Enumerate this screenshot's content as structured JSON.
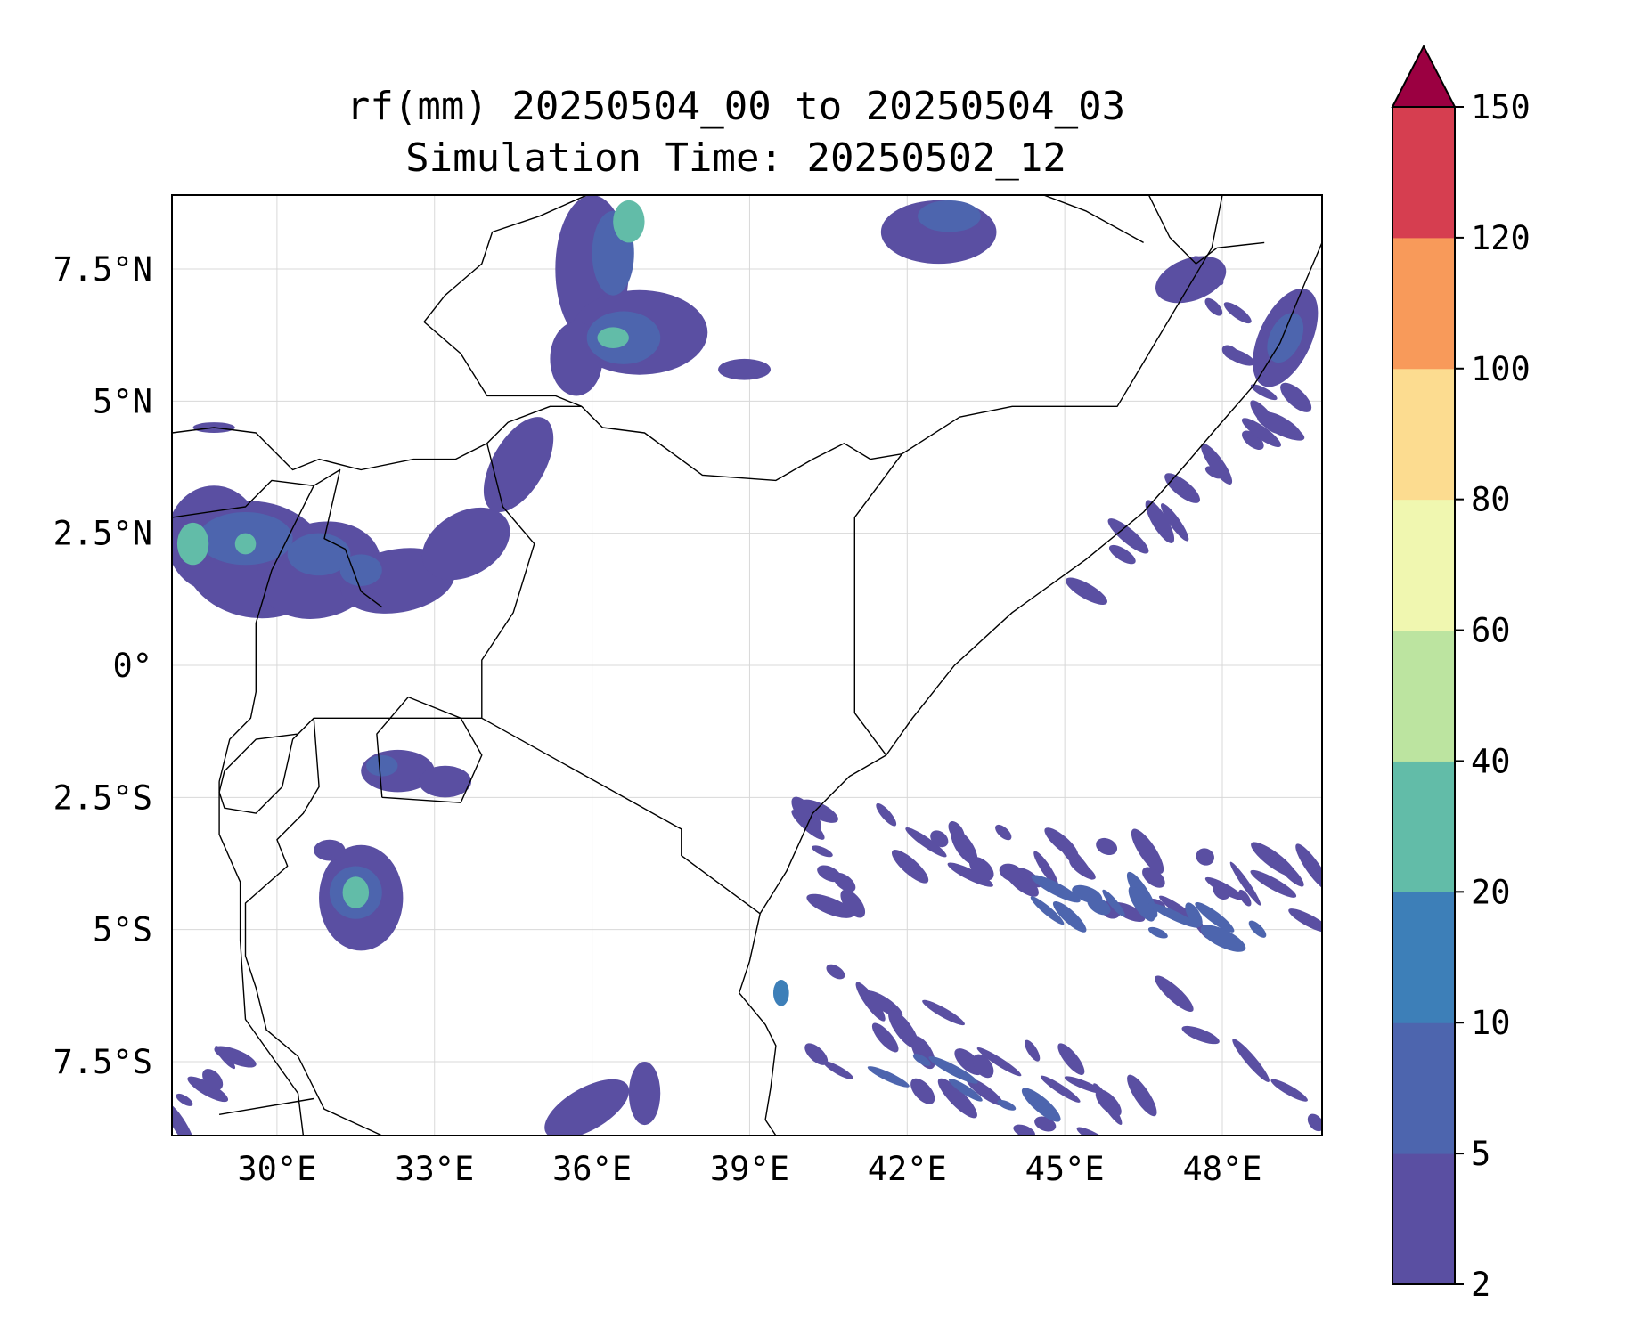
{
  "title": {
    "line1": "rf(mm) 20250504_00 to 20250504_03",
    "line2": "Simulation Time: 20250502_12"
  },
  "map": {
    "extent": {
      "lon_min": 28.0,
      "lon_max": 49.9,
      "lat_min": -8.9,
      "lat_max": 8.9
    },
    "lon_ticks": [
      {
        "value": 30,
        "label": "30°E"
      },
      {
        "value": 33,
        "label": "33°E"
      },
      {
        "value": 36,
        "label": "36°E"
      },
      {
        "value": 39,
        "label": "39°E"
      },
      {
        "value": 42,
        "label": "42°E"
      },
      {
        "value": 45,
        "label": "45°E"
      },
      {
        "value": 48,
        "label": "48°E"
      }
    ],
    "lat_ticks": [
      {
        "value": 7.5,
        "label": "7.5°N"
      },
      {
        "value": 5,
        "label": "5°N"
      },
      {
        "value": 2.5,
        "label": "2.5°N"
      },
      {
        "value": 0,
        "label": "0°"
      },
      {
        "value": -2.5,
        "label": "2.5°S"
      },
      {
        "value": -5,
        "label": "5°S"
      },
      {
        "value": -7.5,
        "label": "7.5°S"
      }
    ],
    "gridlines": true
  },
  "colorbar": {
    "levels": [
      {
        "value": 2,
        "label": "2",
        "color": "#5a4fa2"
      },
      {
        "value": 5,
        "label": "5",
        "color": "#4d65ae"
      },
      {
        "value": 10,
        "label": "10",
        "color": "#3d7fb8"
      },
      {
        "value": 20,
        "label": "20",
        "color": "#62bca8"
      },
      {
        "value": 40,
        "label": "40",
        "color": "#bce4a0"
      },
      {
        "value": 60,
        "label": "60",
        "color": "#f0f7b0"
      },
      {
        "value": 80,
        "label": "80",
        "color": "#fcdc90"
      },
      {
        "value": 100,
        "label": "100",
        "color": "#f89a5a"
      },
      {
        "value": 120,
        "label": "120",
        "color": "#d63e50"
      },
      {
        "value": 150,
        "label": "150",
        "color": "#9b0041"
      }
    ],
    "extend": "max"
  },
  "rain_cells": [
    {
      "lon": 28.8,
      "lat": 2.4,
      "rx": 0.9,
      "ry": 1.0,
      "rot": 0,
      "level": 0
    },
    {
      "lon": 29.6,
      "lat": 2.0,
      "rx": 1.4,
      "ry": 1.1,
      "rot": 10,
      "level": 0
    },
    {
      "lon": 30.8,
      "lat": 1.8,
      "rx": 1.2,
      "ry": 0.9,
      "rot": -15,
      "level": 0
    },
    {
      "lon": 32.3,
      "lat": 1.6,
      "rx": 1.1,
      "ry": 0.6,
      "rot": -10,
      "level": 0
    },
    {
      "lon": 33.6,
      "lat": 2.3,
      "rx": 0.9,
      "ry": 0.6,
      "rot": -30,
      "level": 0
    },
    {
      "lon": 34.6,
      "lat": 3.8,
      "rx": 0.5,
      "ry": 1.0,
      "rot": 30,
      "level": 0
    },
    {
      "lon": 29.4,
      "lat": 2.4,
      "rx": 0.9,
      "ry": 0.5,
      "rot": 0,
      "level": 1
    },
    {
      "lon": 30.8,
      "lat": 2.1,
      "rx": 0.6,
      "ry": 0.4,
      "rot": 0,
      "level": 1
    },
    {
      "lon": 31.6,
      "lat": 1.8,
      "rx": 0.4,
      "ry": 0.3,
      "rot": 0,
      "level": 1
    },
    {
      "lon": 28.4,
      "lat": 2.3,
      "rx": 0.3,
      "ry": 0.4,
      "rot": 0,
      "level": 3
    },
    {
      "lon": 29.4,
      "lat": 2.3,
      "rx": 0.2,
      "ry": 0.2,
      "rot": 0,
      "level": 3
    },
    {
      "lon": 36.0,
      "lat": 7.5,
      "rx": 0.7,
      "ry": 1.4,
      "rot": 0,
      "level": 0
    },
    {
      "lon": 36.9,
      "lat": 6.3,
      "rx": 1.3,
      "ry": 0.8,
      "rot": 0,
      "level": 0
    },
    {
      "lon": 35.7,
      "lat": 5.8,
      "rx": 0.5,
      "ry": 0.7,
      "rot": 0,
      "level": 0
    },
    {
      "lon": 36.6,
      "lat": 6.2,
      "rx": 0.7,
      "ry": 0.5,
      "rot": 0,
      "level": 1
    },
    {
      "lon": 36.4,
      "lat": 7.8,
      "rx": 0.4,
      "ry": 0.8,
      "rot": 0,
      "level": 1
    },
    {
      "lon": 36.4,
      "lat": 6.2,
      "rx": 0.3,
      "ry": 0.2,
      "rot": 0,
      "level": 3
    },
    {
      "lon": 36.7,
      "lat": 8.4,
      "rx": 0.3,
      "ry": 0.4,
      "rot": 0,
      "level": 3
    },
    {
      "lon": 38.9,
      "lat": 5.6,
      "rx": 0.5,
      "ry": 0.2,
      "rot": 0,
      "level": 0
    },
    {
      "lon": 42.6,
      "lat": 8.2,
      "rx": 1.1,
      "ry": 0.6,
      "rot": 0,
      "level": 0
    },
    {
      "lon": 42.8,
      "lat": 8.5,
      "rx": 0.6,
      "ry": 0.3,
      "rot": 0,
      "level": 1
    },
    {
      "lon": 47.4,
      "lat": 7.3,
      "rx": 0.7,
      "ry": 0.4,
      "rot": -20,
      "level": 0
    },
    {
      "lon": 49.2,
      "lat": 6.2,
      "rx": 0.5,
      "ry": 1.0,
      "rot": 25,
      "level": 0
    },
    {
      "lon": 49.2,
      "lat": 6.2,
      "rx": 0.3,
      "ry": 0.5,
      "rot": 25,
      "level": 1
    },
    {
      "lon": 32.3,
      "lat": -2.0,
      "rx": 0.7,
      "ry": 0.4,
      "rot": 0,
      "level": 0
    },
    {
      "lon": 33.2,
      "lat": -2.2,
      "rx": 0.5,
      "ry": 0.3,
      "rot": 0,
      "level": 0
    },
    {
      "lon": 32.0,
      "lat": -1.9,
      "rx": 0.3,
      "ry": 0.2,
      "rot": 0,
      "level": 1
    },
    {
      "lon": 31.6,
      "lat": -4.4,
      "rx": 0.8,
      "ry": 1.0,
      "rot": 0,
      "level": 0
    },
    {
      "lon": 31.5,
      "lat": -4.3,
      "rx": 0.5,
      "ry": 0.5,
      "rot": 0,
      "level": 1
    },
    {
      "lon": 31.5,
      "lat": -4.3,
      "rx": 0.25,
      "ry": 0.3,
      "rot": 0,
      "level": 3
    },
    {
      "lon": 31.0,
      "lat": -3.5,
      "rx": 0.3,
      "ry": 0.2,
      "rot": 0,
      "level": 0
    },
    {
      "lon": 35.9,
      "lat": -8.4,
      "rx": 0.9,
      "ry": 0.4,
      "rot": -30,
      "level": 0
    },
    {
      "lon": 37.0,
      "lat": -8.1,
      "rx": 0.3,
      "ry": 0.6,
      "rot": 0,
      "level": 0
    },
    {
      "lon": 39.6,
      "lat": -6.2,
      "rx": 0.15,
      "ry": 0.25,
      "rot": 0,
      "level": 2
    },
    {
      "lon": 28.8,
      "lat": 4.5,
      "rx": 0.4,
      "ry": 0.1,
      "rot": 0,
      "level": 0
    }
  ],
  "rain_bands": [
    {
      "lon0": 41.8,
      "lon1": 49.8,
      "lat0": -3.5,
      "lat1": -4.6,
      "n": 34,
      "spread": 0.8,
      "level": 0
    },
    {
      "lon0": 44.5,
      "lon1": 48.5,
      "lat0": -4.4,
      "lat1": -5.0,
      "n": 14,
      "spread": 0.4,
      "level": 1
    },
    {
      "lon0": 40.4,
      "lon1": 46.5,
      "lat0": -6.6,
      "lat1": -8.8,
      "n": 26,
      "spread": 0.9,
      "level": 0
    },
    {
      "lon0": 41.5,
      "lon1": 44.5,
      "lat0": -7.6,
      "lat1": -8.3,
      "n": 6,
      "spread": 0.3,
      "level": 1
    },
    {
      "lon0": 40.0,
      "lon1": 41.0,
      "lat0": -2.7,
      "lat1": -4.6,
      "n": 8,
      "spread": 0.5,
      "level": 0
    },
    {
      "lon0": 45.6,
      "lon1": 49.5,
      "lat0": 1.6,
      "lat1": 5.0,
      "n": 12,
      "spread": 0.3,
      "level": 0
    },
    {
      "lon0": 47.8,
      "lon1": 49.0,
      "lat0": 7.4,
      "lat1": 4.5,
      "n": 8,
      "spread": 0.35,
      "level": 0
    },
    {
      "lon0": 28.1,
      "lon1": 29.2,
      "lat0": -8.9,
      "lat1": -7.5,
      "n": 6,
      "spread": 0.4,
      "level": 0
    },
    {
      "lon0": 47.0,
      "lon1": 49.8,
      "lat0": -6.6,
      "lat1": -8.6,
      "n": 5,
      "spread": 0.4,
      "level": 0
    }
  ],
  "borders": [
    [
      [
        35.9,
        8.9
      ],
      [
        35.0,
        8.5
      ],
      [
        34.1,
        8.2
      ],
      [
        33.9,
        7.6
      ],
      [
        33.2,
        7.0
      ],
      [
        32.8,
        6.5
      ],
      [
        33.5,
        5.9
      ],
      [
        34.0,
        5.1
      ],
      [
        35.3,
        5.1
      ],
      [
        35.8,
        4.9
      ]
    ],
    [
      [
        28.0,
        4.4
      ],
      [
        28.8,
        4.5
      ],
      [
        29.6,
        4.4
      ],
      [
        30.3,
        3.7
      ],
      [
        30.8,
        3.9
      ],
      [
        31.6,
        3.7
      ],
      [
        32.6,
        3.9
      ],
      [
        33.4,
        3.9
      ],
      [
        34.0,
        4.2
      ]
    ],
    [
      [
        34.0,
        4.2
      ],
      [
        34.4,
        4.6
      ],
      [
        35.2,
        4.9
      ],
      [
        35.8,
        4.9
      ]
    ],
    [
      [
        35.8,
        4.9
      ],
      [
        36.2,
        4.5
      ],
      [
        37.0,
        4.4
      ],
      [
        38.1,
        3.6
      ],
      [
        39.5,
        3.5
      ],
      [
        40.2,
        3.9
      ],
      [
        40.8,
        4.2
      ],
      [
        41.3,
        3.9
      ],
      [
        41.9,
        4.0
      ]
    ],
    [
      [
        41.9,
        4.0
      ],
      [
        43.0,
        4.7
      ],
      [
        44.0,
        4.9
      ],
      [
        46.0,
        4.9
      ],
      [
        47.8,
        7.9
      ],
      [
        48.0,
        8.9
      ]
    ],
    [
      [
        41.9,
        4.0
      ],
      [
        41.0,
        2.8
      ],
      [
        41.0,
        -0.9
      ],
      [
        41.6,
        -1.7
      ]
    ],
    [
      [
        34.0,
        4.2
      ],
      [
        34.3,
        3.0
      ],
      [
        34.9,
        2.3
      ],
      [
        34.5,
        1.0
      ],
      [
        33.9,
        0.1
      ],
      [
        33.9,
        -1.0
      ]
    ],
    [
      [
        33.9,
        -1.0
      ],
      [
        37.7,
        -3.1
      ],
      [
        37.7,
        -3.6
      ],
      [
        39.2,
        -4.7
      ]
    ],
    [
      [
        33.9,
        -1.0
      ],
      [
        30.7,
        -1.0
      ],
      [
        30.3,
        -1.4
      ],
      [
        30.1,
        -2.3
      ],
      [
        29.6,
        -2.8
      ],
      [
        29.0,
        -2.7
      ],
      [
        28.9,
        -2.4
      ],
      [
        29.0,
        -2.0
      ],
      [
        29.6,
        -1.4
      ],
      [
        30.4,
        -1.3
      ]
    ],
    [
      [
        30.7,
        -1.0
      ],
      [
        30.8,
        -2.3
      ],
      [
        30.5,
        -2.8
      ],
      [
        30.0,
        -3.3
      ],
      [
        30.2,
        -3.8
      ],
      [
        29.4,
        -4.5
      ],
      [
        29.4,
        -5.5
      ],
      [
        29.6,
        -6.1
      ],
      [
        29.8,
        -6.9
      ],
      [
        30.4,
        -7.4
      ],
      [
        30.9,
        -8.4
      ],
      [
        32.0,
        -8.9
      ]
    ],
    [
      [
        28.0,
        2.8
      ],
      [
        29.4,
        3.0
      ],
      [
        29.9,
        3.5
      ],
      [
        30.7,
        3.4
      ],
      [
        31.2,
        3.7
      ],
      [
        30.9,
        2.4
      ],
      [
        31.3,
        2.2
      ],
      [
        31.6,
        1.4
      ],
      [
        32.0,
        1.1
      ]
    ],
    [
      [
        30.7,
        3.4
      ],
      [
        29.9,
        1.8
      ],
      [
        29.6,
        0.8
      ],
      [
        29.6,
        -0.5
      ],
      [
        29.5,
        -1.0
      ],
      [
        29.1,
        -1.4
      ],
      [
        28.9,
        -2.2
      ]
    ],
    [
      [
        28.9,
        -2.2
      ],
      [
        28.9,
        -3.2
      ],
      [
        29.3,
        -4.1
      ],
      [
        29.3,
        -5.2
      ],
      [
        29.4,
        -6.7
      ],
      [
        30.4,
        -8.1
      ],
      [
        30.5,
        -8.9
      ]
    ],
    [
      [
        28.9,
        -8.5
      ],
      [
        30.7,
        -8.2
      ]
    ]
  ],
  "coastline": [
    [
      [
        39.2,
        -4.7
      ],
      [
        39.0,
        -5.6
      ],
      [
        38.8,
        -6.2
      ],
      [
        39.3,
        -6.8
      ],
      [
        39.5,
        -7.2
      ],
      [
        39.4,
        -8.0
      ],
      [
        39.3,
        -8.6
      ],
      [
        39.5,
        -8.9
      ]
    ],
    [
      [
        39.2,
        -4.7
      ],
      [
        39.7,
        -3.9
      ],
      [
        40.2,
        -2.8
      ],
      [
        40.9,
        -2.1
      ],
      [
        41.6,
        -1.7
      ],
      [
        42.1,
        -1.0
      ],
      [
        42.9,
        0.0
      ],
      [
        44.0,
        1.0
      ],
      [
        45.4,
        2.0
      ],
      [
        46.5,
        2.9
      ],
      [
        47.3,
        3.8
      ],
      [
        47.9,
        4.5
      ],
      [
        48.6,
        5.3
      ],
      [
        49.1,
        6.1
      ],
      [
        49.6,
        7.3
      ],
      [
        49.9,
        8.0
      ]
    ],
    [
      [
        46.6,
        8.9
      ],
      [
        47.0,
        8.1
      ],
      [
        47.5,
        7.6
      ],
      [
        47.9,
        7.9
      ],
      [
        48.8,
        8.0
      ]
    ],
    [
      [
        44.6,
        8.9
      ],
      [
        45.4,
        8.6
      ],
      [
        46.5,
        8.0
      ]
    ]
  ],
  "lakes": [
    [
      [
        32.0,
        -2.5
      ],
      [
        33.5,
        -2.6
      ],
      [
        33.9,
        -1.7
      ],
      [
        33.5,
        -1.0
      ],
      [
        32.5,
        -0.6
      ],
      [
        31.9,
        -1.3
      ],
      [
        32.0,
        -2.5
      ]
    ]
  ]
}
